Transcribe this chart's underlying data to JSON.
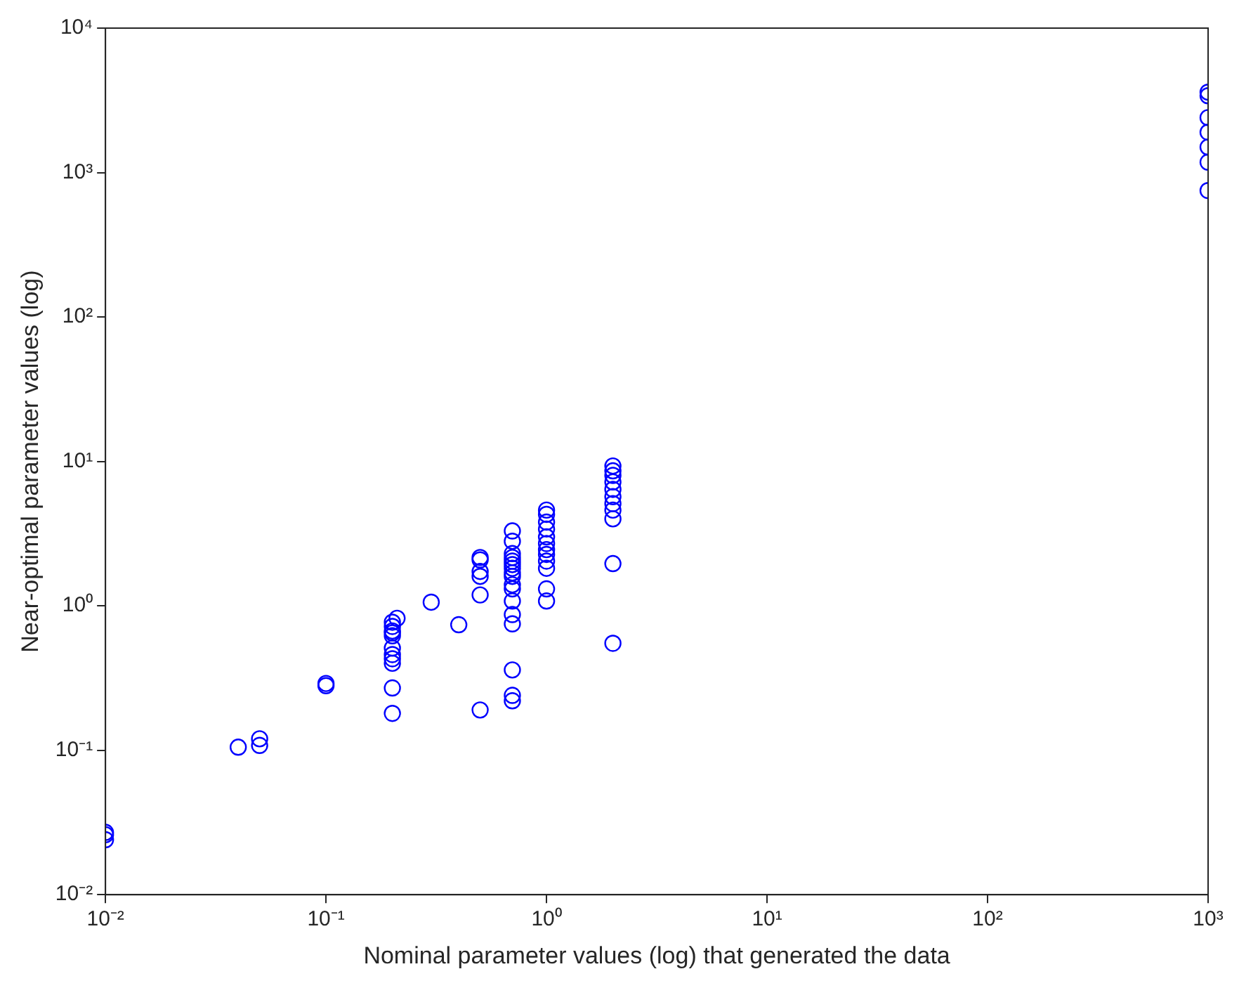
{
  "chart_data": {
    "type": "scatter",
    "xlabel": "Nominal parameter values (log) that generated the data",
    "ylabel": "Near-optimal parameter values (log)",
    "log": "xy",
    "grid": false,
    "legend": false,
    "marker": "circle",
    "xlim": [
      0.01,
      1000
    ],
    "ylim": [
      0.01,
      10000
    ],
    "xticks": [
      {
        "value": 0.01,
        "label": "10⁻²"
      },
      {
        "value": 0.1,
        "label": "10⁻¹"
      },
      {
        "value": 1,
        "label": "10⁰"
      },
      {
        "value": 10,
        "label": "10¹"
      },
      {
        "value": 100,
        "label": "10²"
      },
      {
        "value": 1000,
        "label": "10³"
      }
    ],
    "yticks": [
      {
        "value": 0.01,
        "label": "10⁻²"
      },
      {
        "value": 0.1,
        "label": "10⁻¹"
      },
      {
        "value": 1,
        "label": "10⁰"
      },
      {
        "value": 10,
        "label": "10¹"
      },
      {
        "value": 100,
        "label": "10²"
      },
      {
        "value": 1000,
        "label": "10³"
      },
      {
        "value": 10000,
        "label": "10⁴"
      }
    ],
    "series": [
      {
        "color": "#0000ff",
        "x": [
          0.01,
          0.01,
          0.01,
          0.04,
          0.05,
          0.05,
          0.1,
          0.1,
          0.21,
          0.2,
          0.2,
          0.2,
          0.2,
          0.2,
          0.2,
          0.2,
          0.2,
          0.2,
          0.2,
          0.2,
          0.3,
          0.4,
          0.5,
          0.5,
          0.5,
          0.5,
          0.5,
          0.5,
          0.7,
          0.7,
          0.7,
          0.7,
          0.7,
          0.7,
          0.7,
          0.7,
          0.7,
          0.7,
          0.7,
          0.7,
          0.7,
          0.7,
          0.7,
          0.7,
          0.7,
          1,
          1,
          1,
          1,
          1,
          1,
          1,
          1,
          1,
          1,
          1,
          1,
          2,
          2,
          2,
          2,
          2,
          2,
          2,
          2,
          2,
          2,
          2,
          1000,
          1000,
          1000,
          1000,
          1000,
          1000,
          1000
        ],
        "values": [
          0.027,
          0.026,
          0.024,
          0.105,
          0.12,
          0.108,
          0.29,
          0.28,
          0.82,
          0.77,
          0.72,
          0.67,
          0.65,
          0.62,
          0.51,
          0.46,
          0.43,
          0.4,
          0.27,
          0.18,
          1.06,
          0.74,
          2.16,
          2.08,
          1.73,
          1.6,
          1.19,
          0.19,
          3.3,
          2.8,
          2.3,
          2.16,
          2.04,
          1.93,
          1.82,
          1.69,
          1.6,
          1.4,
          1.31,
          1.08,
          0.87,
          0.75,
          0.36,
          0.24,
          0.22,
          4.6,
          4.3,
          3.8,
          3.4,
          3.0,
          2.7,
          2.45,
          2.27,
          2.04,
          1.82,
          1.31,
          1.08,
          9.3,
          8.6,
          8.0,
          7.2,
          6.4,
          5.7,
          5.1,
          4.6,
          4.0,
          1.96,
          0.55,
          3600,
          3400,
          2400,
          1900,
          1500,
          1180,
          750
        ]
      }
    ]
  }
}
